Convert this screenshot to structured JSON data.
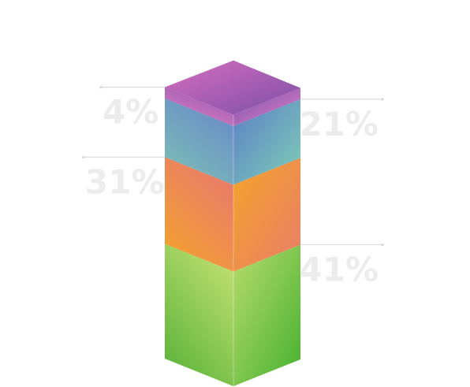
{
  "chart_data": {
    "type": "bar",
    "title": "",
    "xlabel": "",
    "ylabel": "",
    "stacked": true,
    "style": "isometric-3d",
    "ylim": [
      0,
      100
    ],
    "series": [
      {
        "label": "41%",
        "value": 41,
        "colors": {
          "front": [
            "#53b035",
            "#b9dc6e"
          ],
          "side": [
            "#b9dc6e",
            "#45b02f"
          ]
        }
      },
      {
        "label": "31%",
        "value": 31,
        "colors": {
          "front": [
            "#f4a52a",
            "#e87c69"
          ],
          "side": [
            "#f4a52a",
            "#e87c69"
          ]
        }
      },
      {
        "label": "21%",
        "value": 21,
        "colors": {
          "front": [
            "#7ec3b4",
            "#6a8ec8"
          ],
          "side": [
            "#5c7ec6",
            "#7fcfb7"
          ]
        }
      },
      {
        "label": "4%",
        "value": 4,
        "colors": {
          "front": [
            "#e383c2",
            "#9a5ab2"
          ],
          "side": [
            "#7a52b0",
            "#e17fc3"
          ]
        }
      }
    ],
    "top_face_colors": [
      "#d76ebe",
      "#7b4fa8"
    ],
    "label_sides": [
      "right",
      "left",
      "right",
      "left"
    ]
  }
}
